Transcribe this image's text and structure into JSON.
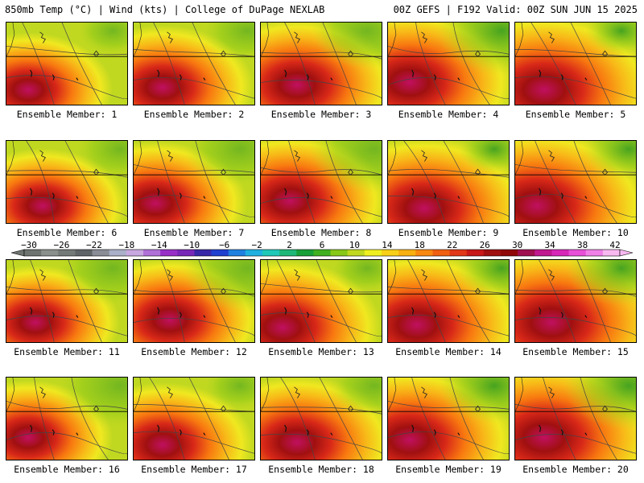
{
  "header": {
    "left": "850mb Temp (°C) | Wind (kts) | College of DuPage NEXLAB",
    "right": "00Z GEFS | F192 Valid: 00Z SUN JUN 15 2025"
  },
  "member_label_prefix": "Ensemble Member: ",
  "members": [
    {
      "id": "1",
      "label": "Ensemble Member: 1"
    },
    {
      "id": "2",
      "label": "Ensemble Member: 2"
    },
    {
      "id": "3",
      "label": "Ensemble Member: 3"
    },
    {
      "id": "4",
      "label": "Ensemble Member: 4"
    },
    {
      "id": "5",
      "label": "Ensemble Member: 5"
    },
    {
      "id": "6",
      "label": "Ensemble Member: 6"
    },
    {
      "id": "7",
      "label": "Ensemble Member: 7"
    },
    {
      "id": "8",
      "label": "Ensemble Member: 8"
    },
    {
      "id": "9",
      "label": "Ensemble Member: 9"
    },
    {
      "id": "10",
      "label": "Ensemble Member: 10"
    },
    {
      "id": "11",
      "label": "Ensemble Member: 11"
    },
    {
      "id": "12",
      "label": "Ensemble Member: 12"
    },
    {
      "id": "13",
      "label": "Ensemble Member: 13"
    },
    {
      "id": "14",
      "label": "Ensemble Member: 14"
    },
    {
      "id": "15",
      "label": "Ensemble Member: 15"
    },
    {
      "id": "16",
      "label": "Ensemble Member: 16"
    },
    {
      "id": "17",
      "label": "Ensemble Member: 17"
    },
    {
      "id": "18",
      "label": "Ensemble Member: 18"
    },
    {
      "id": "19",
      "label": "Ensemble Member: 19"
    },
    {
      "id": "20",
      "label": "Ensemble Member: 20"
    }
  ],
  "colorbar": {
    "ticks": [
      "−30",
      "−26",
      "−22",
      "−18",
      "−14",
      "−10",
      "−6",
      "−2",
      "2",
      "6",
      "10",
      "14",
      "18",
      "22",
      "26",
      "30",
      "34",
      "38",
      "42"
    ],
    "colors": [
      "#6e7470",
      "#8a908c",
      "#737a78",
      "#5f6566",
      "#8a8d96",
      "#aab0c8",
      "#c8a8e0",
      "#b070d8",
      "#9830c8",
      "#7828b8",
      "#3828a8",
      "#2040d0",
      "#2080e0",
      "#20b0e0",
      "#20c8b8",
      "#20b878",
      "#18a038",
      "#40b020",
      "#88c818",
      "#c0d820",
      "#f0f020",
      "#f8d018",
      "#f8b010",
      "#f88810",
      "#f06010",
      "#e03818",
      "#c81818",
      "#a01010",
      "#900808",
      "#a01050",
      "#c01890",
      "#d828b8",
      "#e850d8",
      "#f080e8",
      "#f8b8f0"
    ]
  }
}
